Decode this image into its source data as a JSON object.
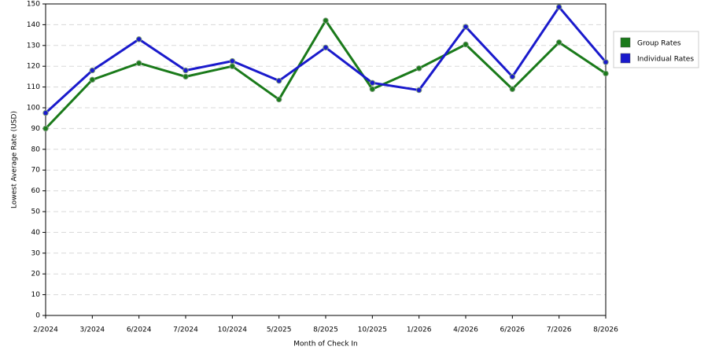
{
  "chart_data": {
    "type": "line",
    "x_label": "Month of Check In",
    "y_label": "Lowest Average Rate (USD)",
    "categories": [
      "2/2024",
      "3/2024",
      "6/2024",
      "7/2024",
      "10/2024",
      "5/2025",
      "8/2025",
      "10/2025",
      "1/2026",
      "4/2026",
      "6/2026",
      "7/2026",
      "8/2026"
    ],
    "series": [
      {
        "name": "Group Rates",
        "color": "#1a7a1a",
        "values": [
          90,
          113.5,
          121.5,
          115,
          120,
          104,
          142,
          109,
          119,
          130.5,
          109,
          131.5,
          116.5
        ]
      },
      {
        "name": "Individual Rates",
        "color": "#1a1acc",
        "values": [
          97.5,
          118,
          133,
          118,
          122.5,
          113,
          129,
          112,
          108.5,
          139,
          115,
          148.5,
          122
        ]
      }
    ],
    "ylim": [
      0,
      150
    ],
    "yticks": [
      0,
      10,
      20,
      30,
      40,
      50,
      60,
      70,
      80,
      90,
      100,
      110,
      120,
      130,
      140,
      150
    ],
    "grid": true,
    "legend": "right"
  }
}
